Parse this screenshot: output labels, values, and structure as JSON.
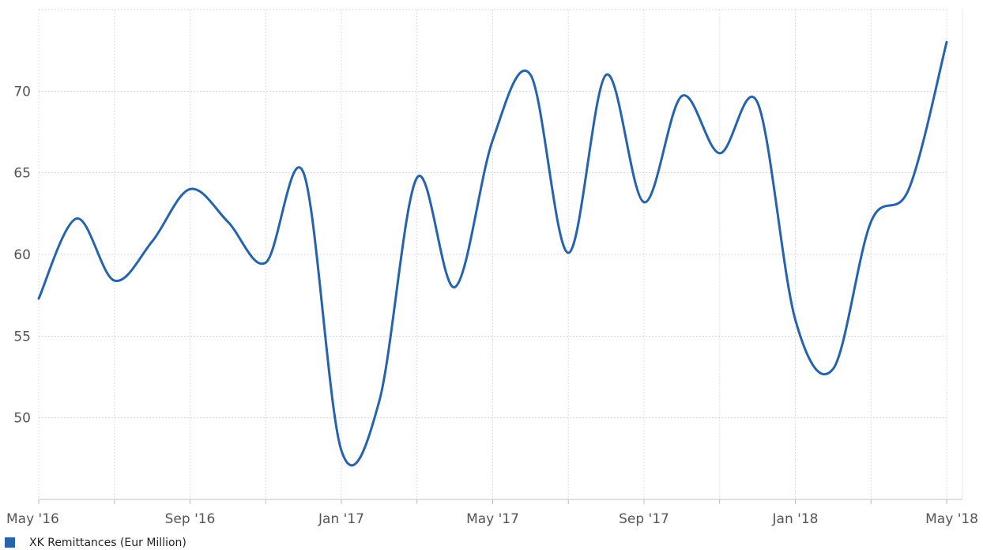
{
  "chart_data": {
    "type": "line",
    "title": "",
    "xlabel": "",
    "ylabel": "",
    "x": [
      "2016-05",
      "2016-06",
      "2016-07",
      "2016-08",
      "2016-09",
      "2016-10",
      "2016-11",
      "2016-12",
      "2017-01",
      "2017-02",
      "2017-03",
      "2017-04",
      "2017-05",
      "2017-06",
      "2017-07",
      "2017-08",
      "2017-09",
      "2017-10",
      "2017-11",
      "2017-12",
      "2018-01",
      "2018-02",
      "2018-03",
      "2018-04",
      "2018-05"
    ],
    "x_tick_labels": [
      "May '16",
      "Sep '16",
      "Jan '17",
      "May '17",
      "Sep '17",
      "Jan '18",
      "May '18"
    ],
    "y_ticks": [
      50,
      55,
      60,
      65,
      70
    ],
    "ylim": [
      45,
      75
    ],
    "grid": true,
    "legend_position": "bottom-left",
    "series": [
      {
        "name": "XK Remittances (Eur Million)",
        "color": "#2563ad",
        "values": [
          57.3,
          62.2,
          58.4,
          60.8,
          64.0,
          62.0,
          59.5,
          65.0,
          48.0,
          51.0,
          64.7,
          58.0,
          67.0,
          71.0,
          60.1,
          71.0,
          63.2,
          69.7,
          66.2,
          69.3,
          56.0,
          53.0,
          62.0,
          64.0,
          73.0
        ]
      }
    ]
  }
}
